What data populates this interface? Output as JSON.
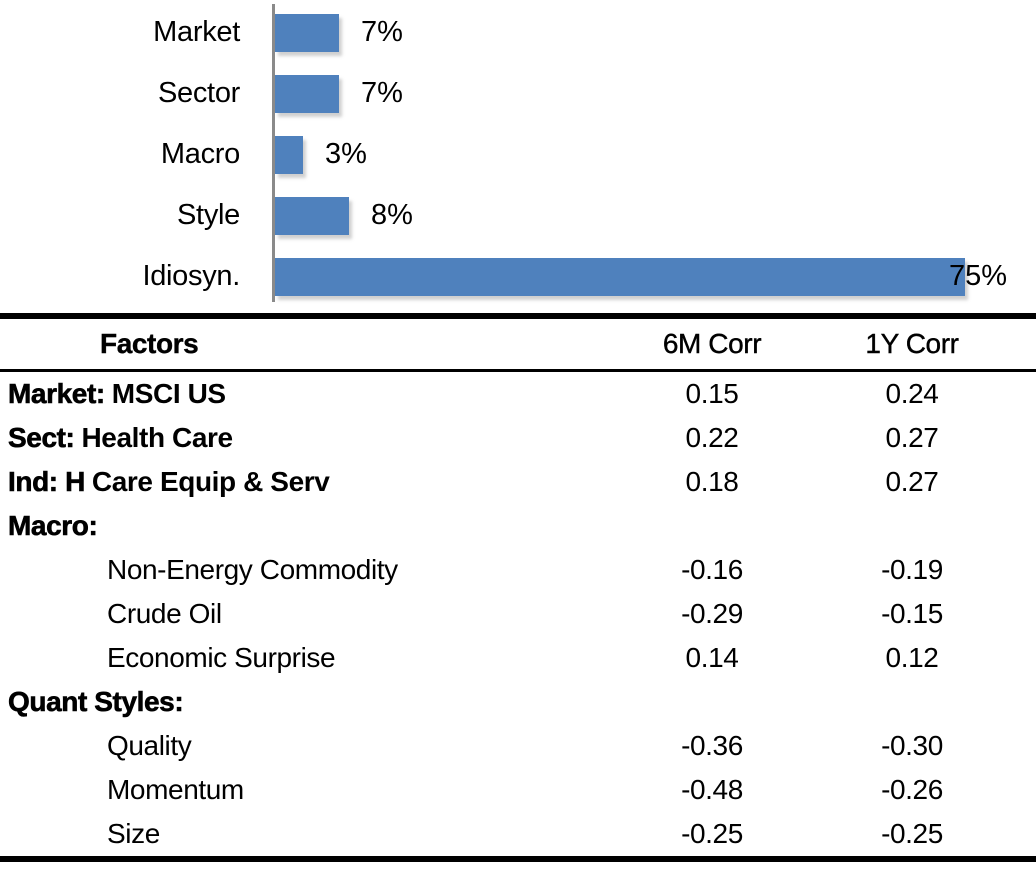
{
  "chart_data": {
    "type": "bar",
    "orientation": "horizontal",
    "title": "",
    "categories": [
      "Market",
      "Sector",
      "Macro",
      "Style",
      "Idiosyn."
    ],
    "values": [
      7,
      7,
      3,
      8,
      75
    ],
    "value_labels": [
      "7%",
      "7%",
      "3%",
      "8%",
      "75%"
    ],
    "value_suffix": "%",
    "xlim": [
      0,
      80
    ],
    "grid": false,
    "legend": false,
    "bar_color": "#4F81BD",
    "axis_color": "#8a8a8a",
    "label_color": "#000000"
  },
  "table": {
    "columns": {
      "factors": "Factors",
      "corr6m": "6M Corr",
      "corr1y": "1Y Corr"
    },
    "rows": [
      {
        "prefix": "Market:",
        "label": "MSCI US",
        "c6m": "0.15",
        "c1y": "0.24"
      },
      {
        "prefix": "Sect:",
        "label": "Health Care",
        "c6m": "0.22",
        "c1y": "0.27"
      },
      {
        "prefix": "Ind: H",
        "label": "Care Equip & Serv",
        "c6m": "0.18",
        "c1y": "0.27"
      },
      {
        "prefix": "Macro:",
        "label": "",
        "c6m": "",
        "c1y": ""
      },
      {
        "prefix": "",
        "label": "Non-Energy Commodity",
        "c6m": "-0.16",
        "c1y": "-0.19"
      },
      {
        "prefix": "",
        "label": "Crude Oil",
        "c6m": "-0.29",
        "c1y": "-0.15"
      },
      {
        "prefix": "",
        "label": "Economic Surprise",
        "c6m": "0.14",
        "c1y": "0.12"
      },
      {
        "prefix": "Quant Styles:",
        "label": "",
        "c6m": "",
        "c1y": ""
      },
      {
        "prefix": "",
        "label": "Quality",
        "c6m": "-0.36",
        "c1y": "-0.30"
      },
      {
        "prefix": "",
        "label": "Momentum",
        "c6m": "-0.48",
        "c1y": "-0.26"
      },
      {
        "prefix": "",
        "label": "Size",
        "c6m": "-0.25",
        "c1y": "-0.25"
      }
    ]
  }
}
